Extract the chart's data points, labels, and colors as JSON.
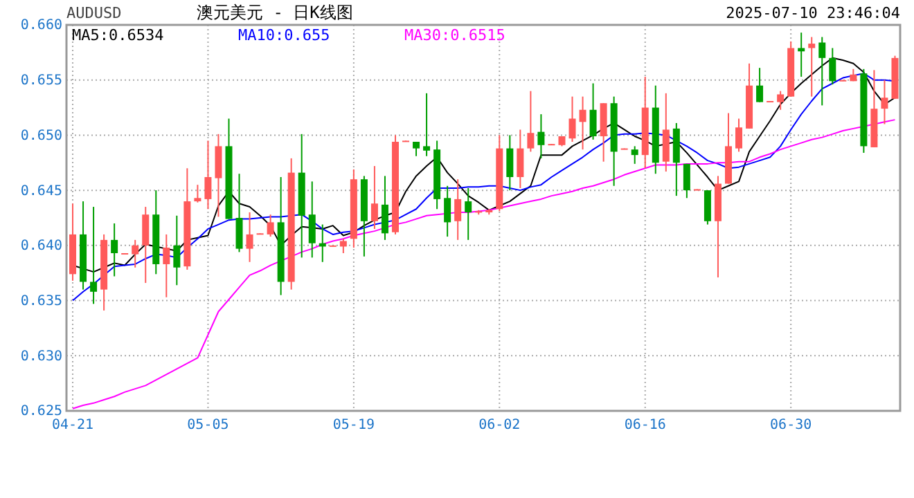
{
  "chart_data": {
    "type": "candlestick",
    "title": "澳元美元 - 日K线图",
    "subtitle": "AUDUSD",
    "annotations": [
      "2025-07-10 23:46:04"
    ],
    "categories": [
      "04-21",
      null,
      null,
      null,
      null,
      null,
      null,
      null,
      null,
      null,
      null,
      null,
      null,
      "05-05",
      null,
      null,
      null,
      null,
      null,
      null,
      null,
      null,
      null,
      null,
      null,
      null,
      null,
      "05-19",
      null,
      null,
      null,
      null,
      null,
      null,
      null,
      null,
      null,
      null,
      null,
      null,
      null,
      "06-02",
      null,
      null,
      null,
      null,
      null,
      null,
      null,
      null,
      null,
      null,
      null,
      null,
      null,
      "06-16",
      null,
      null,
      null,
      null,
      null,
      null,
      null,
      null,
      null,
      null,
      null,
      null,
      null,
      "06-30",
      null,
      null,
      null,
      null,
      null,
      null,
      null,
      null,
      null,
      null
    ],
    "ohlc": [
      [
        0.6374,
        0.6438,
        0.6368,
        0.641
      ],
      [
        0.641,
        0.644,
        0.636,
        0.6367
      ],
      [
        0.6367,
        0.6435,
        0.6347,
        0.6358
      ],
      [
        0.636,
        0.641,
        0.6341,
        0.6405
      ],
      [
        0.6405,
        0.642,
        0.6372,
        0.6393
      ],
      [
        0.6392,
        0.6393,
        0.6392,
        0.6393
      ],
      [
        0.6392,
        0.6405,
        0.638,
        0.64
      ],
      [
        0.64,
        0.6435,
        0.6366,
        0.6428
      ],
      [
        0.6428,
        0.645,
        0.6374,
        0.6383
      ],
      [
        0.6383,
        0.641,
        0.6353,
        0.6398
      ],
      [
        0.64,
        0.6427,
        0.6364,
        0.638
      ],
      [
        0.6381,
        0.647,
        0.6378,
        0.644
      ],
      [
        0.644,
        0.6455,
        0.6439,
        0.6443
      ],
      [
        0.6442,
        0.6495,
        0.6433,
        0.6462
      ],
      [
        0.6461,
        0.6501,
        0.6426,
        0.649
      ],
      [
        0.649,
        0.6515,
        0.6424,
        0.6424
      ],
      [
        0.6425,
        0.6465,
        0.6394,
        0.6397
      ],
      [
        0.6397,
        0.643,
        0.6385,
        0.641
      ],
      [
        0.641,
        0.6411,
        0.641,
        0.6411
      ],
      [
        0.641,
        0.6428,
        0.6408,
        0.6421
      ],
      [
        0.6421,
        0.6462,
        0.6355,
        0.6367
      ],
      [
        0.6367,
        0.6479,
        0.636,
        0.6466
      ],
      [
        0.6466,
        0.6501,
        0.6389,
        0.6427
      ],
      [
        0.6428,
        0.6458,
        0.6389,
        0.6402
      ],
      [
        0.6402,
        0.6419,
        0.6385,
        0.6399
      ],
      [
        0.6399,
        0.64,
        0.6399,
        0.64
      ],
      [
        0.6399,
        0.6406,
        0.6393,
        0.6404
      ],
      [
        0.6406,
        0.6469,
        0.6398,
        0.646
      ],
      [
        0.646,
        0.6463,
        0.639,
        0.6422
      ],
      [
        0.6422,
        0.6472,
        0.6415,
        0.6438
      ],
      [
        0.6437,
        0.6463,
        0.6405,
        0.6411
      ],
      [
        0.6412,
        0.65,
        0.641,
        0.6494
      ],
      [
        0.6494,
        0.6495,
        0.6494,
        0.6495
      ],
      [
        0.6494,
        0.6494,
        0.6481,
        0.6488
      ],
      [
        0.649,
        0.6538,
        0.6481,
        0.6486
      ],
      [
        0.6487,
        0.6495,
        0.6433,
        0.6442
      ],
      [
        0.6443,
        0.6454,
        0.6408,
        0.6421
      ],
      [
        0.6422,
        0.646,
        0.6405,
        0.6442
      ],
      [
        0.644,
        0.6452,
        0.6405,
        0.643
      ],
      [
        0.643,
        0.6432,
        0.6428,
        0.6431
      ],
      [
        0.643,
        0.6433,
        0.6428,
        0.6432
      ],
      [
        0.6433,
        0.65,
        0.6431,
        0.6488
      ],
      [
        0.6488,
        0.65,
        0.645,
        0.6462
      ],
      [
        0.6462,
        0.6505,
        0.6452,
        0.6488
      ],
      [
        0.6488,
        0.654,
        0.6485,
        0.6502
      ],
      [
        0.6503,
        0.6519,
        0.6479,
        0.6491
      ],
      [
        0.6491,
        0.6492,
        0.6491,
        0.6492
      ],
      [
        0.6491,
        0.6499,
        0.649,
        0.6499
      ],
      [
        0.6497,
        0.6535,
        0.6494,
        0.6515
      ],
      [
        0.6512,
        0.6535,
        0.6487,
        0.6523
      ],
      [
        0.6523,
        0.6547,
        0.6496,
        0.6499
      ],
      [
        0.6499,
        0.6529,
        0.6476,
        0.6529
      ],
      [
        0.6529,
        0.6535,
        0.6454,
        0.6485
      ],
      [
        0.6487,
        0.6488,
        0.6487,
        0.6488
      ],
      [
        0.6487,
        0.649,
        0.6474,
        0.6482
      ],
      [
        0.6482,
        0.6553,
        0.647,
        0.6525
      ],
      [
        0.6525,
        0.6545,
        0.6465,
        0.6475
      ],
      [
        0.6476,
        0.6538,
        0.6467,
        0.6505
      ],
      [
        0.6506,
        0.6511,
        0.6445,
        0.6475
      ],
      [
        0.6474,
        0.6474,
        0.6443,
        0.645
      ],
      [
        0.645,
        0.6451,
        0.645,
        0.6451
      ],
      [
        0.645,
        0.645,
        0.6419,
        0.6422
      ],
      [
        0.6422,
        0.6463,
        0.6371,
        0.6456
      ],
      [
        0.6456,
        0.652,
        0.6456,
        0.649
      ],
      [
        0.6488,
        0.6515,
        0.6485,
        0.6507
      ],
      [
        0.6506,
        0.6565,
        0.6506,
        0.6545
      ],
      [
        0.6545,
        0.6561,
        0.653,
        0.653
      ],
      [
        0.653,
        0.6531,
        0.653,
        0.6531
      ],
      [
        0.653,
        0.654,
        0.6523,
        0.6537
      ],
      [
        0.6535,
        0.6585,
        0.6535,
        0.6579
      ],
      [
        0.6579,
        0.6593,
        0.6553,
        0.6576
      ],
      [
        0.6579,
        0.6589,
        0.6535,
        0.6583
      ],
      [
        0.6584,
        0.6589,
        0.6527,
        0.657
      ],
      [
        0.657,
        0.6579,
        0.6546,
        0.6549
      ],
      [
        0.6549,
        0.655,
        0.6549,
        0.655
      ],
      [
        0.6549,
        0.656,
        0.6549,
        0.6555
      ],
      [
        0.6556,
        0.656,
        0.6484,
        0.649
      ],
      [
        0.6489,
        0.6559,
        0.6489,
        0.6524
      ],
      [
        0.6524,
        0.655,
        0.651,
        0.6534
      ],
      [
        0.6533,
        0.6572,
        0.6533,
        0.657
      ]
    ],
    "colors": [
      "#ff5a5a",
      "#009e00",
      "#009e00",
      "#ff5a5a",
      "#009e00",
      "#ff5a5a",
      "#ff5a5a",
      "#ff5a5a",
      "#009e00",
      "#ff5a5a",
      "#009e00",
      "#ff5a5a",
      "#ff5a5a",
      "#ff5a5a",
      "#ff5a5a",
      "#009e00",
      "#009e00",
      "#ff5a5a",
      "#ff5a5a",
      "#ff5a5a",
      "#009e00",
      "#ff5a5a",
      "#009e00",
      "#009e00",
      "#009e00",
      "#ff5a5a",
      "#ff5a5a",
      "#ff5a5a",
      "#009e00",
      "#ff5a5a",
      "#009e00",
      "#ff5a5a",
      "#ff5a5a",
      "#009e00",
      "#009e00",
      "#009e00",
      "#009e00",
      "#ff5a5a",
      "#009e00",
      "#ff5a5a",
      "#ff5a5a",
      "#ff5a5a",
      "#009e00",
      "#ff5a5a",
      "#ff5a5a",
      "#009e00",
      "#ff5a5a",
      "#ff5a5a",
      "#ff5a5a",
      "#ff5a5a",
      "#009e00",
      "#ff5a5a",
      "#009e00",
      "#ff5a5a",
      "#009e00",
      "#ff5a5a",
      "#009e00",
      "#ff5a5a",
      "#009e00",
      "#009e00",
      "#ff5a5a",
      "#009e00",
      "#ff5a5a",
      "#ff5a5a",
      "#ff5a5a",
      "#ff5a5a",
      "#009e00",
      "#ff5a5a",
      "#ff5a5a",
      "#ff5a5a",
      "#009e00",
      "#ff5a5a",
      "#009e00",
      "#009e00",
      "#ff5a5a",
      "#ff5a5a",
      "#009e00",
      "#ff5a5a",
      "#ff5a5a",
      "#ff5a5a"
    ],
    "series": [
      {
        "type": "line",
        "name": "MA5:0.6534",
        "color": "#000000",
        "values": [
          0.6382,
          0.6379,
          0.6376,
          0.638,
          0.6384,
          0.6382,
          0.6392,
          0.6401,
          0.6399,
          0.6397,
          0.6395,
          0.6405,
          0.6407,
          0.6409,
          0.6436,
          0.6449,
          0.6438,
          0.6435,
          0.6427,
          0.6418,
          0.64,
          0.6409,
          0.6417,
          0.6416,
          0.6415,
          0.6418,
          0.6409,
          0.6412,
          0.6418,
          0.6423,
          0.6427,
          0.643,
          0.6449,
          0.6463,
          0.6472,
          0.648,
          0.6466,
          0.6456,
          0.6445,
          0.6439,
          0.6432,
          0.6436,
          0.644,
          0.6447,
          0.6454,
          0.6482,
          0.6482,
          0.6482,
          0.649,
          0.6495,
          0.65,
          0.6506,
          0.6511,
          0.6505,
          0.6499,
          0.6495,
          0.649,
          0.6492,
          0.6494,
          0.6484,
          0.6473,
          0.6462,
          0.645,
          0.6454,
          0.6458,
          0.6485,
          0.6499,
          0.6513,
          0.6528,
          0.6538,
          0.6547,
          0.6555,
          0.6563,
          0.657,
          0.6568,
          0.6565,
          0.6557,
          0.654,
          0.6528,
          0.6534
        ]
      },
      {
        "type": "line",
        "name": "MA10:0.655",
        "color": "#0000ff",
        "values": [
          0.635,
          0.6358,
          0.6365,
          0.6373,
          0.6381,
          0.6382,
          0.6383,
          0.6388,
          0.6392,
          0.6391,
          0.6389,
          0.6398,
          0.6406,
          0.6415,
          0.6419,
          0.6423,
          0.6424,
          0.6424,
          0.6425,
          0.6426,
          0.6426,
          0.6427,
          0.6428,
          0.6422,
          0.6415,
          0.641,
          0.6412,
          0.6413,
          0.6416,
          0.6419,
          0.6421,
          0.6423,
          0.6428,
          0.6433,
          0.6443,
          0.6452,
          0.6452,
          0.6452,
          0.6453,
          0.6453,
          0.6454,
          0.6454,
          0.6452,
          0.645,
          0.6453,
          0.6455,
          0.6462,
          0.6468,
          0.6474,
          0.648,
          0.6487,
          0.6493,
          0.65,
          0.6501,
          0.6501,
          0.6502,
          0.6501,
          0.65,
          0.6495,
          0.649,
          0.6484,
          0.6477,
          0.6474,
          0.647,
          0.6471,
          0.6474,
          0.6477,
          0.648,
          0.649,
          0.6505,
          0.6519,
          0.6531,
          0.6542,
          0.6547,
          0.6552,
          0.6554,
          0.6556,
          0.655,
          0.655,
          0.6549
        ]
      },
      {
        "type": "line",
        "name": "MA30:0.6515",
        "color": "#ff00ff",
        "values": [
          0.6252,
          0.6255,
          0.6257,
          0.626,
          0.6263,
          0.6267,
          0.627,
          0.6273,
          0.6278,
          0.6283,
          0.6288,
          0.6293,
          0.6298,
          0.6319,
          0.634,
          0.6351,
          0.6362,
          0.6373,
          0.6377,
          0.6382,
          0.6386,
          0.639,
          0.6394,
          0.6397,
          0.6401,
          0.6404,
          0.6406,
          0.6409,
          0.6411,
          0.6413,
          0.6416,
          0.6419,
          0.6421,
          0.6424,
          0.6427,
          0.6428,
          0.6429,
          0.643,
          0.643,
          0.6431,
          0.6432,
          0.6434,
          0.6436,
          0.6438,
          0.644,
          0.6442,
          0.6445,
          0.6447,
          0.6449,
          0.6452,
          0.6454,
          0.6457,
          0.646,
          0.6464,
          0.6467,
          0.647,
          0.6473,
          0.6473,
          0.6473,
          0.6474,
          0.6474,
          0.6474,
          0.6475,
          0.6475,
          0.6476,
          0.6476,
          0.648,
          0.6483,
          0.6487,
          0.649,
          0.6493,
          0.6496,
          0.6498,
          0.6501,
          0.6504,
          0.6506,
          0.6508,
          0.651,
          0.6512,
          0.6514
        ]
      }
    ],
    "ylim": [
      0.625,
      0.66
    ],
    "yticks": [
      0.625,
      {
        "value": 0.63,
        "label": "0.630"
      },
      0.635,
      {
        "value": 0.64,
        "label": "0.640"
      },
      0.645,
      {
        "value": 0.65,
        "label": "0.650"
      },
      0.655,
      {
        "value": 0.66,
        "label": "0.660"
      }
    ],
    "grid": true,
    "legend": "top left"
  }
}
